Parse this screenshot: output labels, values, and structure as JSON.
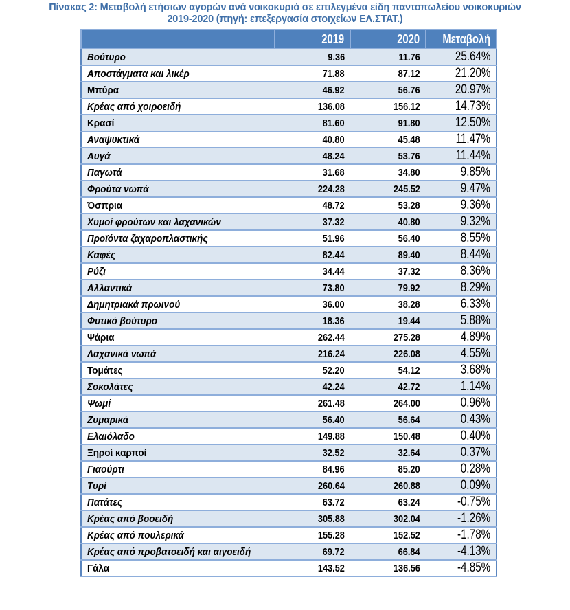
{
  "title_line1": "Πίνακας 2: Μεταβολή ετήσιων αγορών ανά νοικοκυριό σε επιλεγμένα είδη παντοπωλείου νοικοκυριών",
  "title_line2": "2019-2020 (πηγή: επεξεργασία στοιχείων ΕΛ.ΣΤΑΤ.)",
  "colors": {
    "title": "#3f6fa8",
    "header_bg": "#4f81bd",
    "band": "#dce6f1",
    "border": "#8eaedb"
  },
  "columns": [
    "",
    "2019",
    "2020",
    "Μεταβολή"
  ],
  "rows": [
    {
      "name": "Βούτυρο",
      "y2019": "9.36",
      "y2020": "11.76",
      "change": "25.64%",
      "italic": true
    },
    {
      "name": "Αποστάγματα και λικέρ",
      "y2019": "71.88",
      "y2020": "87.12",
      "change": "21.20%",
      "italic": true
    },
    {
      "name": "Μπύρα",
      "y2019": "46.92",
      "y2020": "56.76",
      "change": "20.97%",
      "italic": false
    },
    {
      "name": "Κρέας από χοιροειδή",
      "y2019": "136.08",
      "y2020": "156.12",
      "change": "14.73%",
      "italic": true
    },
    {
      "name": "Κρασί",
      "y2019": "81.60",
      "y2020": "91.80",
      "change": "12.50%",
      "italic": false
    },
    {
      "name": "Αναψυκτικά",
      "y2019": "40.80",
      "y2020": "45.48",
      "change": "11.47%",
      "italic": true
    },
    {
      "name": "Αυγά",
      "y2019": "48.24",
      "y2020": "53.76",
      "change": "11.44%",
      "italic": true
    },
    {
      "name": "Παγωτά",
      "y2019": "31.68",
      "y2020": "34.80",
      "change": "9.85%",
      "italic": true
    },
    {
      "name": "Φρούτα νωπά",
      "y2019": "224.28",
      "y2020": "245.52",
      "change": "9.47%",
      "italic": true
    },
    {
      "name": "Όσπρια",
      "y2019": "48.72",
      "y2020": "53.28",
      "change": "9.36%",
      "italic": false
    },
    {
      "name": "Χυμοί φρούτων και λαχανικών",
      "y2019": "37.32",
      "y2020": "40.80",
      "change": "9.32%",
      "italic": true
    },
    {
      "name": "Προϊόντα ζαχαροπλαστικής",
      "y2019": "51.96",
      "y2020": "56.40",
      "change": "8.55%",
      "italic": true
    },
    {
      "name": "Καφές",
      "y2019": "82.44",
      "y2020": "89.40",
      "change": "8.44%",
      "italic": true
    },
    {
      "name": "Ρύζι",
      "y2019": "34.44",
      "y2020": "37.32",
      "change": "8.36%",
      "italic": true
    },
    {
      "name": "Αλλαντικά",
      "y2019": "73.80",
      "y2020": "79.92",
      "change": "8.29%",
      "italic": true
    },
    {
      "name": "Δημητριακά πρωινού",
      "y2019": "36.00",
      "y2020": "38.28",
      "change": "6.33%",
      "italic": true
    },
    {
      "name": "Φυτικό βούτυρο",
      "y2019": "18.36",
      "y2020": "19.44",
      "change": "5.88%",
      "italic": true
    },
    {
      "name": "Ψάρια",
      "y2019": "262.44",
      "y2020": "275.28",
      "change": "4.89%",
      "italic": false
    },
    {
      "name": "Λαχανικά νωπά",
      "y2019": "216.24",
      "y2020": "226.08",
      "change": "4.55%",
      "italic": true
    },
    {
      "name": "Τομάτες",
      "y2019": "52.20",
      "y2020": "54.12",
      "change": "3.68%",
      "italic": false
    },
    {
      "name": "Σοκολάτες",
      "y2019": "42.24",
      "y2020": "42.72",
      "change": "1.14%",
      "italic": true
    },
    {
      "name": "Ψωμί",
      "y2019": "261.48",
      "y2020": "264.00",
      "change": "0.96%",
      "italic": true
    },
    {
      "name": "Ζυμαρικά",
      "y2019": "56.40",
      "y2020": "56.64",
      "change": "0.43%",
      "italic": true
    },
    {
      "name": "Ελαιόλαδο",
      "y2019": "149.88",
      "y2020": "150.48",
      "change": "0.40%",
      "italic": true
    },
    {
      "name": "Ξηροί καρποί",
      "y2019": "32.52",
      "y2020": "32.64",
      "change": "0.37%",
      "italic": false
    },
    {
      "name": "Γιαούρτι",
      "y2019": "84.96",
      "y2020": "85.20",
      "change": "0.28%",
      "italic": true
    },
    {
      "name": "Τυρί",
      "y2019": "260.64",
      "y2020": "260.88",
      "change": "0.09%",
      "italic": true
    },
    {
      "name": "Πατάτες",
      "y2019": "63.72",
      "y2020": "63.24",
      "change": "-0.75%",
      "italic": true
    },
    {
      "name": "Κρέας από βοοειδή",
      "y2019": "305.88",
      "y2020": "302.04",
      "change": "-1.26%",
      "italic": true
    },
    {
      "name": "Κρέας από πουλερικά",
      "y2019": "155.28",
      "y2020": "152.52",
      "change": "-1.78%",
      "italic": true
    },
    {
      "name": "Κρέας από προβατοειδή και αιγοειδή",
      "y2019": "69.72",
      "y2020": "66.84",
      "change": "-4.13%",
      "italic": true
    },
    {
      "name": "Γάλα",
      "y2019": "143.52",
      "y2020": "136.56",
      "change": "-4.85%",
      "italic": false
    }
  ]
}
